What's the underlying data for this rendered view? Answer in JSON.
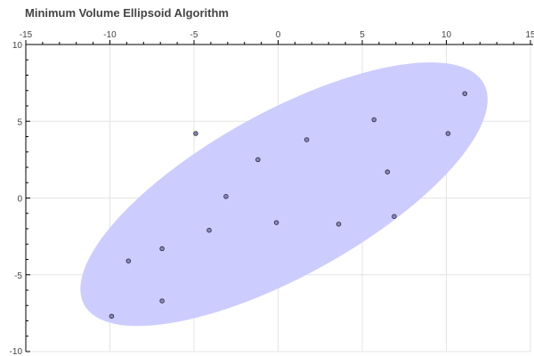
{
  "chart_data": {
    "type": "scatter",
    "title": "Minimum Volume Ellipsoid Algorithm",
    "xlabel": "",
    "ylabel": "",
    "xlim": [
      -15,
      15
    ],
    "ylim": [
      -10,
      10
    ],
    "x_ticks": [
      -15,
      -10,
      -5,
      0,
      5,
      10,
      15
    ],
    "y_ticks": [
      10,
      5,
      0,
      -5,
      -10
    ],
    "x_tick_labels": [
      "-15",
      "-10",
      "-5",
      "0",
      "5",
      "10",
      "15"
    ],
    "y_tick_labels": [
      "10",
      "5",
      "0",
      "-5",
      "-10"
    ],
    "x_axis_position": "top",
    "grid": true,
    "points": [
      {
        "x": -9.9,
        "y": -7.7
      },
      {
        "x": -8.9,
        "y": -4.1
      },
      {
        "x": -6.9,
        "y": -3.3
      },
      {
        "x": -6.9,
        "y": -6.7
      },
      {
        "x": -4.9,
        "y": 4.2
      },
      {
        "x": -4.1,
        "y": -2.1
      },
      {
        "x": -3.1,
        "y": 0.1
      },
      {
        "x": -1.2,
        "y": 2.5
      },
      {
        "x": -0.1,
        "y": -1.6
      },
      {
        "x": 1.7,
        "y": 3.8
      },
      {
        "x": 3.6,
        "y": -1.7
      },
      {
        "x": 5.7,
        "y": 5.1
      },
      {
        "x": 6.5,
        "y": 1.7
      },
      {
        "x": 6.9,
        "y": -1.2
      },
      {
        "x": 10.1,
        "y": 4.2
      },
      {
        "x": 11.1,
        "y": 6.8
      }
    ],
    "ellipse": {
      "cx": 0.35,
      "cy": 0.25,
      "semi_major": 13.9,
      "semi_minor": 5.2,
      "angle_deg": 32
    }
  },
  "colors": {
    "ellipse_fill": "#ccccff",
    "point_fill": "#8888cc",
    "point_stroke": "#333333",
    "axis": "#000000",
    "grid": "#e4e4e4",
    "tick_label": "#444444"
  }
}
